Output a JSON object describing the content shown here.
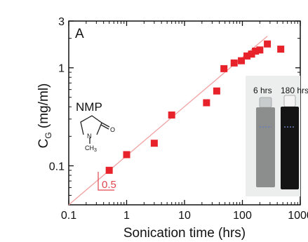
{
  "chart_data": {
    "type": "scatter",
    "panel_label": "A",
    "xlabel": "Sonication time (hrs)",
    "ylabel_main": "C",
    "ylabel_sub": "G",
    "ylabel_unit": " (mg/ml)",
    "xscale": "log",
    "yscale": "log",
    "xlim": [
      0.1,
      1000
    ],
    "ylim": [
      0.04,
      3
    ],
    "xticks": [
      0.1,
      1,
      10,
      100,
      1000
    ],
    "xtick_labels": [
      "0.1",
      "1",
      "10",
      "100",
      "1000"
    ],
    "yticks": [
      0.1,
      1,
      3
    ],
    "ytick_labels": [
      "0.1",
      "1",
      "3"
    ],
    "points": [
      {
        "x": 0.5,
        "y": 0.09
      },
      {
        "x": 1,
        "y": 0.13
      },
      {
        "x": 3,
        "y": 0.17
      },
      {
        "x": 6,
        "y": 0.33
      },
      {
        "x": 24,
        "y": 0.44
      },
      {
        "x": 36,
        "y": 0.58
      },
      {
        "x": 48,
        "y": 0.98
      },
      {
        "x": 72,
        "y": 1.12
      },
      {
        "x": 96,
        "y": 1.18
      },
      {
        "x": 120,
        "y": 1.32
      },
      {
        "x": 144,
        "y": 1.38
      },
      {
        "x": 168,
        "y": 1.48
      },
      {
        "x": 200,
        "y": 1.52
      },
      {
        "x": 270,
        "y": 1.75
      },
      {
        "x": 460,
        "y": 1.55
      }
    ],
    "fit_line": {
      "x": [
        0.1,
        270
      ],
      "y": [
        0.04,
        2.1
      ],
      "slope": 0.5
    },
    "slope_label": "0.5",
    "molecule_label": "NMP",
    "molecule_substituent": "CH",
    "molecule_substituent_sub": "3",
    "inset_labels": [
      "6 hrs",
      "180 hrs"
    ],
    "marker_color": "#e8222a",
    "line_color": "#f0a0a0"
  }
}
